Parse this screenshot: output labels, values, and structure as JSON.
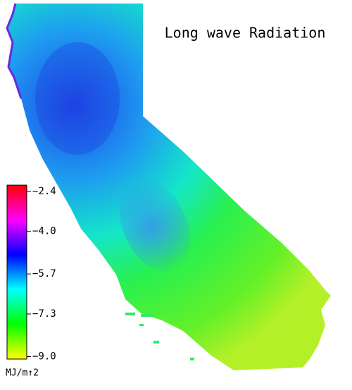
{
  "title": "Long wave Radiation",
  "colorbar": {
    "label": "MJ/m↑2",
    "lim": [
      -9.1,
      -2.15
    ],
    "ticks": [
      {
        "value": -2.4,
        "label": "−2.4"
      },
      {
        "value": -4.0,
        "label": "−4.0"
      },
      {
        "value": -5.7,
        "label": "−5.7"
      },
      {
        "value": -7.3,
        "label": "−7.3"
      },
      {
        "value": -9.0,
        "label": "−9.0"
      }
    ],
    "colors": [
      "#ffff00",
      "#00ff00",
      "#00ffff",
      "#0000ff",
      "#ff00ff",
      "#ff0000"
    ]
  }
}
